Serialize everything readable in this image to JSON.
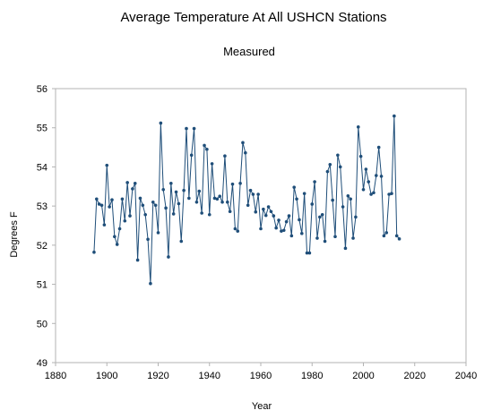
{
  "chart_data": {
    "type": "line",
    "title": "Average Temperature At All USHCN Stations",
    "subtitle": "Measured",
    "xlabel": "Year",
    "ylabel": "Degrees F",
    "xlim": [
      1880,
      2040
    ],
    "ylim": [
      49,
      56
    ],
    "x_ticks": [
      "1880",
      "1900",
      "1920",
      "1940",
      "1960",
      "1980",
      "2000",
      "2020",
      "2040"
    ],
    "y_ticks": [
      "49",
      "50",
      "51",
      "52",
      "53",
      "54",
      "55",
      "56"
    ],
    "grid": false,
    "legend": "none",
    "series": [
      {
        "color": "#1f4e79",
        "marker": "circle",
        "x": [
          1895,
          1896,
          1897,
          1898,
          1899,
          1900,
          1901,
          1902,
          1903,
          1904,
          1905,
          1906,
          1907,
          1908,
          1909,
          1910,
          1911,
          1912,
          1913,
          1914,
          1915,
          1916,
          1917,
          1918,
          1919,
          1920,
          1921,
          1922,
          1923,
          1924,
          1925,
          1926,
          1927,
          1928,
          1929,
          1930,
          1931,
          1932,
          1933,
          1934,
          1935,
          1936,
          1937,
          1938,
          1939,
          1940,
          1941,
          1942,
          1943,
          1944,
          1945,
          1946,
          1947,
          1948,
          1949,
          1950,
          1951,
          1952,
          1953,
          1954,
          1955,
          1956,
          1957,
          1958,
          1959,
          1960,
          1961,
          1962,
          1963,
          1964,
          1965,
          1966,
          1967,
          1968,
          1969,
          1970,
          1971,
          1972,
          1973,
          1974,
          1975,
          1976,
          1977,
          1978,
          1979,
          1980,
          1981,
          1982,
          1983,
          1984,
          1985,
          1986,
          1987,
          1988,
          1989,
          1990,
          1991,
          1992,
          1993,
          1994,
          1995,
          1996,
          1997,
          1998,
          1999,
          2000,
          2001,
          2002,
          2003,
          2004,
          2005,
          2006,
          2007,
          2008,
          2009,
          2010,
          2011,
          2012,
          2013,
          2014
        ],
        "y": [
          51.82,
          53.18,
          53.05,
          53.02,
          52.52,
          54.04,
          52.98,
          53.16,
          52.22,
          52.02,
          52.42,
          53.18,
          52.62,
          53.6,
          52.75,
          53.44,
          53.58,
          51.62,
          53.2,
          53.02,
          52.78,
          52.15,
          51.02,
          53.1,
          53.02,
          52.32,
          55.12,
          53.42,
          52.95,
          51.7,
          53.58,
          52.8,
          53.36,
          53.06,
          52.1,
          53.4,
          54.98,
          53.2,
          54.3,
          54.98,
          53.1,
          53.38,
          52.82,
          54.55,
          54.45,
          52.78,
          54.08,
          53.2,
          53.18,
          53.25,
          53.1,
          54.28,
          53.1,
          52.86,
          53.56,
          52.42,
          52.36,
          53.58,
          54.62,
          54.36,
          53.02,
          53.4,
          53.3,
          52.85,
          53.3,
          52.42,
          52.92,
          52.76,
          52.98,
          52.86,
          52.75,
          52.44,
          52.64,
          52.36,
          52.38,
          52.6,
          52.75,
          52.24,
          53.48,
          53.18,
          52.65,
          52.3,
          53.32,
          51.8,
          51.8,
          53.05,
          53.62,
          52.18,
          52.72,
          52.78,
          52.1,
          53.88,
          54.06,
          53.15,
          52.22,
          54.3,
          54.0,
          52.98,
          51.92,
          53.26,
          53.18,
          52.18,
          52.72,
          55.02,
          54.27,
          53.42,
          53.94,
          53.62,
          53.3,
          53.34,
          53.78,
          54.5,
          53.76,
          52.24,
          52.32,
          53.3,
          53.32,
          55.3,
          52.24,
          52.16
        ]
      }
    ]
  }
}
